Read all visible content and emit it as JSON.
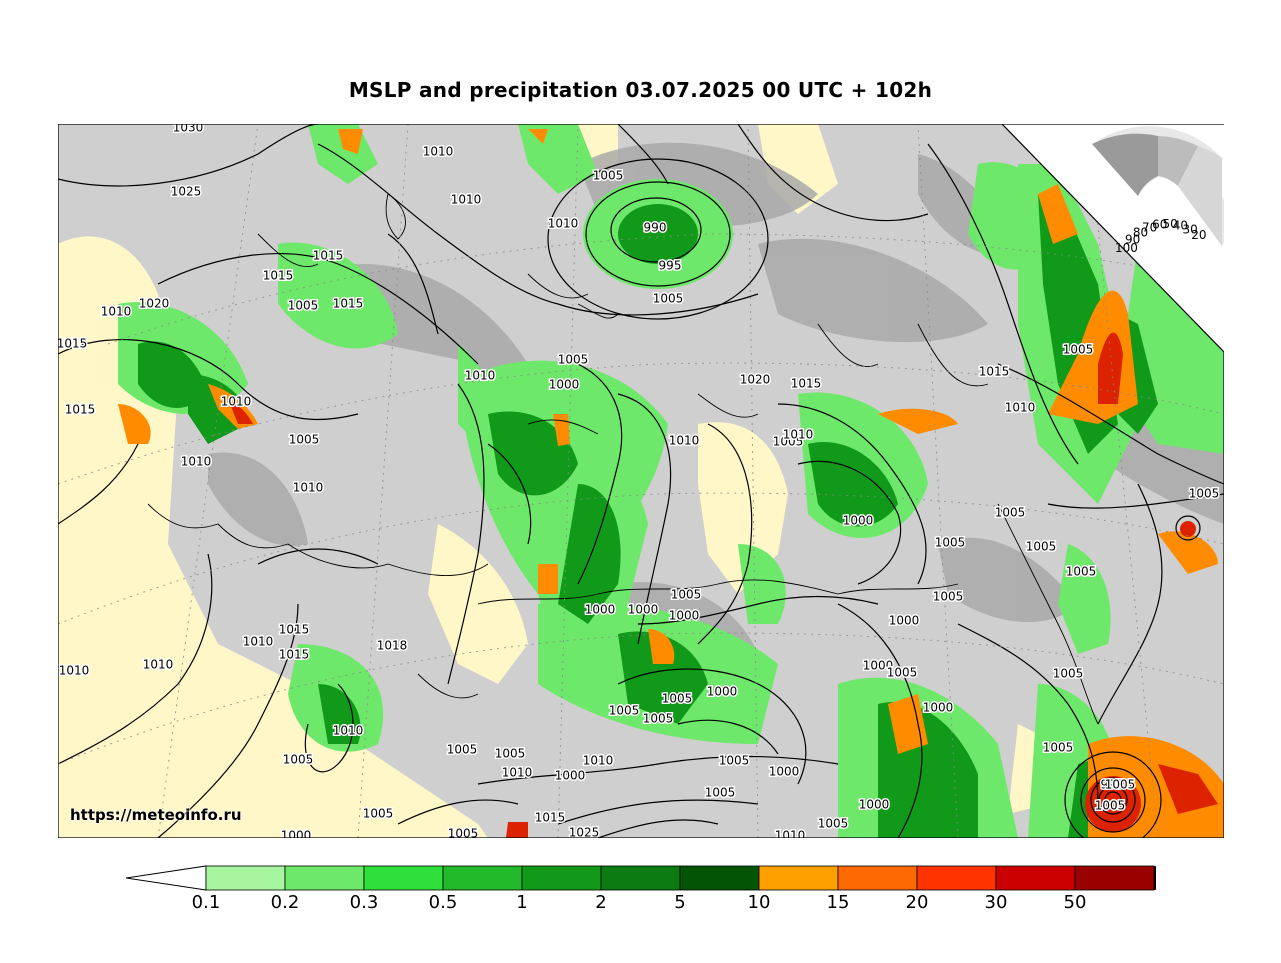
{
  "title": "MSLP and precipitation 03.07.2025 00 UTC + 102h",
  "watermark": "https://meteoinfo.ru",
  "colorbar": {
    "ticks": [
      "0.1",
      "0.2",
      "0.3",
      "0.5",
      "1",
      "2",
      "5",
      "10",
      "15",
      "20",
      "30",
      "50"
    ],
    "colors": [
      "#a8f5a0",
      "#6ee86a",
      "#2fe03a",
      "#22b92a",
      "#119a19",
      "#0a7c12",
      "#035505",
      "#ffa000",
      "#ff6a00",
      "#ff3300",
      "#cc0000",
      "#990000",
      "#000000"
    ]
  },
  "inset_scale": [
    "100",
    "90",
    "80",
    "70",
    "60",
    "50",
    "40",
    "30",
    "20"
  ],
  "isobar_labels": [
    "1030",
    "1010",
    "1025",
    "1010",
    "1010",
    "1005",
    "1015",
    "1015",
    "1010",
    "1015",
    "1020",
    "1015",
    "1015",
    "1005",
    "990",
    "995",
    "1005",
    "1005",
    "1000",
    "1010",
    "1010",
    "1010",
    "1005",
    "1010",
    "1020",
    "1015",
    "1005",
    "1010",
    "1010",
    "1015",
    "1005",
    "1010",
    "1005",
    "1000",
    "1005",
    "1005",
    "1005",
    "1005",
    "1005",
    "1000",
    "1000",
    "1000",
    "1005",
    "1000",
    "1000",
    "1005",
    "1015",
    "1015",
    "1010",
    "1018",
    "1010",
    "1010",
    "1005",
    "1005",
    "1005",
    "1010",
    "1010",
    "1000",
    "1005",
    "1005",
    "1005",
    "1005",
    "1000",
    "1005",
    "1010",
    "1000",
    "1005",
    "1025",
    "1015",
    "1010",
    "1005",
    "1000",
    "1000",
    "995",
    "1005",
    "1005",
    "1005",
    "1005",
    "1000",
    "1005"
  ]
}
